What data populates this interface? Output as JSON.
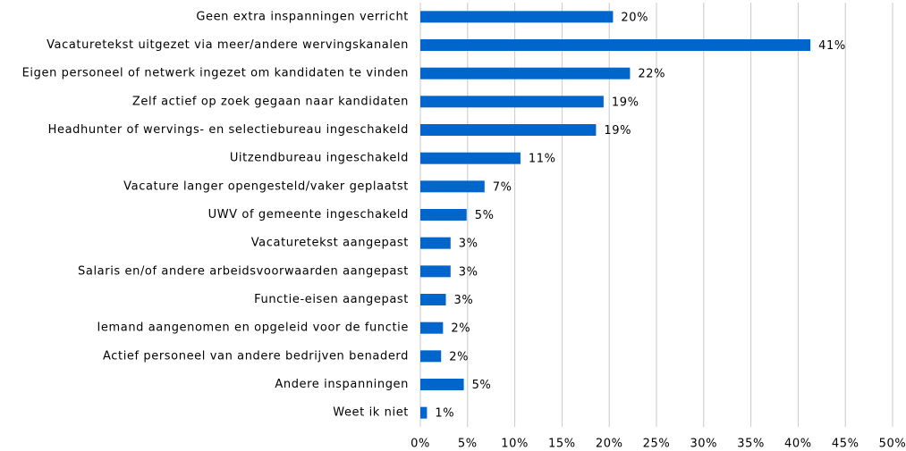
{
  "chart_data": {
    "type": "hbar",
    "categories": [
      "Geen extra inspanningen verricht",
      "Vacaturetekst uitgezet via meer/andere wervingskanalen",
      "Eigen personeel of netwerk ingezet om kandidaten te vinden",
      "Zelf actief op zoek gegaan naar kandidaten",
      "Headhunter of wervings- en selectiebureau ingeschakeld",
      "Uitzendbureau ingeschakeld",
      "Vacature langer opengesteld/vaker geplaatst",
      "UWV of gemeente ingeschakeld",
      "Vacaturetekst aangepast",
      "Salaris en/of andere arbeidsvoorwaarden aangepast",
      "Functie-eisen aangepast",
      "Iemand aangenomen en opgeleid voor de functie",
      "Actief personeel van andere bedrijven benaderd",
      "Andere inspanningen",
      "Weet ik niet"
    ],
    "values": [
      20.4,
      41.3,
      22.2,
      19.4,
      18.6,
      10.6,
      6.8,
      4.9,
      3.2,
      3.2,
      2.7,
      2.4,
      2.2,
      4.6,
      0.7
    ],
    "value_labels": [
      "20%",
      "41%",
      "22%",
      "19%",
      "19%",
      "11%",
      "7%",
      "5%",
      "3%",
      "3%",
      "3%",
      "2%",
      "2%",
      "5%",
      "1%"
    ],
    "color": "#0066cc",
    "xlim": [
      0,
      50
    ],
    "xticks": [
      {
        "value": 0,
        "label": "0%"
      },
      {
        "value": 5,
        "label": "5%"
      },
      {
        "value": 10,
        "label": "10%"
      },
      {
        "value": 15,
        "label": "15%"
      },
      {
        "value": 20,
        "label": "20%"
      },
      {
        "value": 25,
        "label": "25%"
      },
      {
        "value": 30,
        "label": "30%"
      },
      {
        "value": 35,
        "label": "35%"
      },
      {
        "value": 40,
        "label": "40%"
      },
      {
        "value": 45,
        "label": "45%"
      },
      {
        "value": 50,
        "label": "50%"
      }
    ],
    "grid": true
  }
}
